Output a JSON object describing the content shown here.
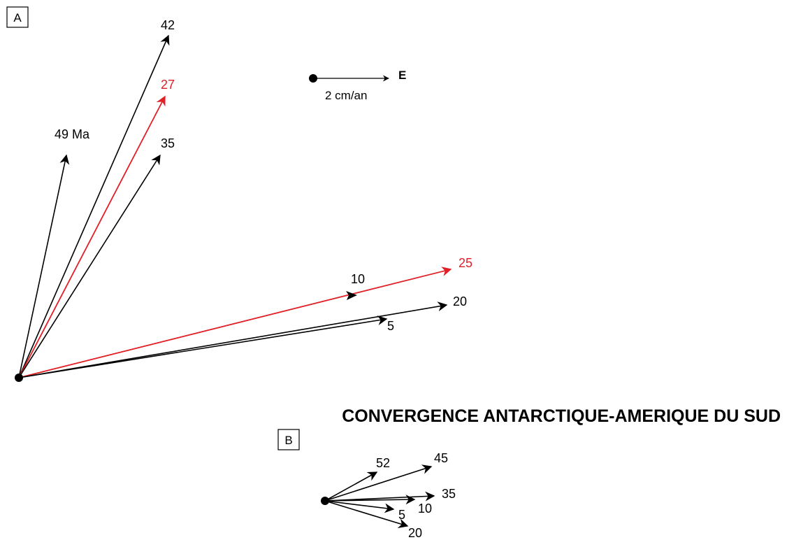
{
  "panel_a": {
    "label": "A",
    "vectors": [
      {
        "age": "42",
        "color": "#000000"
      },
      {
        "age": "27",
        "color": "#e01f26"
      },
      {
        "age": "35",
        "color": "#000000"
      },
      {
        "age": "49 Ma",
        "color": "#000000"
      },
      {
        "age": "25",
        "color": "#e01f26"
      },
      {
        "age": "10",
        "color": "#000000"
      },
      {
        "age": "20",
        "color": "#000000"
      },
      {
        "age": "5",
        "color": "#000000"
      }
    ]
  },
  "scale": {
    "label": "2 cm/an",
    "direction": "E"
  },
  "title": "CONVERGENCE ANTARCTIQUE-AMERIQUE DU SUD",
  "panel_b": {
    "label": "B",
    "vectors": [
      {
        "age": "52"
      },
      {
        "age": "45"
      },
      {
        "age": "35"
      },
      {
        "age": "10"
      },
      {
        "age": "5"
      },
      {
        "age": "20"
      }
    ]
  },
  "colors": {
    "black": "#000000",
    "red": "#e01f26"
  }
}
